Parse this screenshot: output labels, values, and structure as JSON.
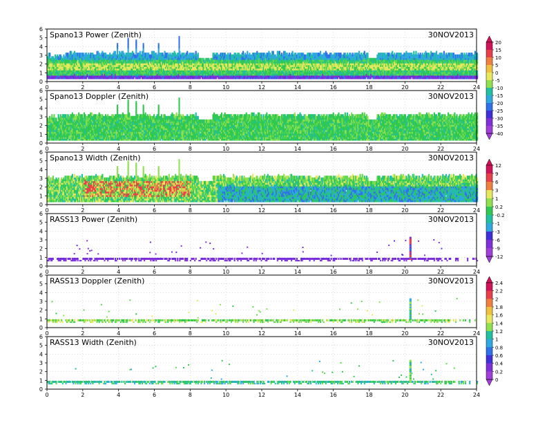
{
  "chart_data": [
    {
      "type": "heatmap",
      "title": "Spano13 Power (Zenith)",
      "date": "30NOV2013",
      "xlim": [
        0,
        24
      ],
      "ylim": [
        0,
        6
      ],
      "x_ticks": [
        0,
        2,
        4,
        6,
        8,
        10,
        12,
        14,
        16,
        18,
        20,
        22,
        24
      ],
      "y_ticks": [
        0,
        1,
        2,
        3,
        4,
        5,
        6
      ],
      "colorbar": {
        "labels": [
          "20",
          "15",
          "10",
          "5",
          "0",
          "-5",
          "-10",
          "-15",
          "-20",
          "-25",
          "-30",
          "-35",
          "-40"
        ]
      },
      "grid": true
    },
    {
      "type": "heatmap",
      "title": "Spano13 Doppler (Zenith)",
      "date": "30NOV2013",
      "xlim": [
        0,
        24
      ],
      "ylim": [
        0,
        6
      ],
      "x_ticks": [
        0,
        2,
        4,
        6,
        8,
        10,
        12,
        14,
        16,
        18,
        20,
        22,
        24
      ],
      "y_ticks": [
        0,
        1,
        2,
        3,
        4,
        5,
        6
      ],
      "grid": true
    },
    {
      "type": "heatmap",
      "title": "Spano13 Width (Zenith)",
      "date": "30NOV2013",
      "xlim": [
        0,
        24
      ],
      "ylim": [
        0,
        6
      ],
      "x_ticks": [
        0,
        2,
        4,
        6,
        8,
        10,
        12,
        14,
        16,
        18,
        20,
        22,
        24
      ],
      "y_ticks": [
        0,
        1,
        2,
        3,
        4,
        5,
        6
      ],
      "colorbar": {
        "labels": [
          "12",
          "9",
          "6",
          "3",
          "1",
          "0.2",
          "-0.2",
          "-1",
          "-3",
          "-6",
          "-9",
          "-12"
        ]
      },
      "grid": true
    },
    {
      "type": "heatmap",
      "title": "RASS13 Power (Zenith)",
      "date": "30NOV2013",
      "xlim": [
        0,
        24
      ],
      "ylim": [
        0,
        6
      ],
      "x_ticks": [
        0,
        2,
        4,
        6,
        8,
        10,
        12,
        14,
        16,
        18,
        20,
        22,
        24
      ],
      "y_ticks": [
        0,
        1,
        2,
        3,
        4,
        5,
        6
      ],
      "grid": true
    },
    {
      "type": "heatmap",
      "title": "RASS13 Doppler (Zenith)",
      "date": "30NOV2013",
      "xlim": [
        0,
        24
      ],
      "ylim": [
        0,
        6
      ],
      "x_ticks": [
        0,
        2,
        4,
        6,
        8,
        10,
        12,
        14,
        16,
        18,
        20,
        22,
        24
      ],
      "y_ticks": [
        0,
        1,
        2,
        3,
        4,
        5,
        6
      ],
      "colorbar": {
        "labels": [
          "2.4",
          "2.2",
          "2",
          "1.8",
          "1.6",
          "1.4",
          "1.2",
          "1",
          "0.8",
          "0.6",
          "0.4",
          "0.2",
          "0"
        ]
      },
      "grid": true
    },
    {
      "type": "heatmap",
      "title": "RASS13 Width (Zenith)",
      "date": "30NOV2013",
      "xlim": [
        0,
        24
      ],
      "ylim": [
        0,
        6
      ],
      "x_ticks": [
        0,
        2,
        4,
        6,
        8,
        10,
        12,
        14,
        16,
        18,
        20,
        22,
        24
      ],
      "y_ticks": [
        0,
        1,
        2,
        3,
        4,
        5,
        6
      ],
      "grid": true
    }
  ],
  "colorbar_colors": [
    "#d0145a",
    "#e8404a",
    "#f08040",
    "#f0c040",
    "#e8e860",
    "#90e050",
    "#30c850",
    "#20c0a0",
    "#30a8e0",
    "#3070e8",
    "#4030d8",
    "#8030d8",
    "#a040d8"
  ]
}
